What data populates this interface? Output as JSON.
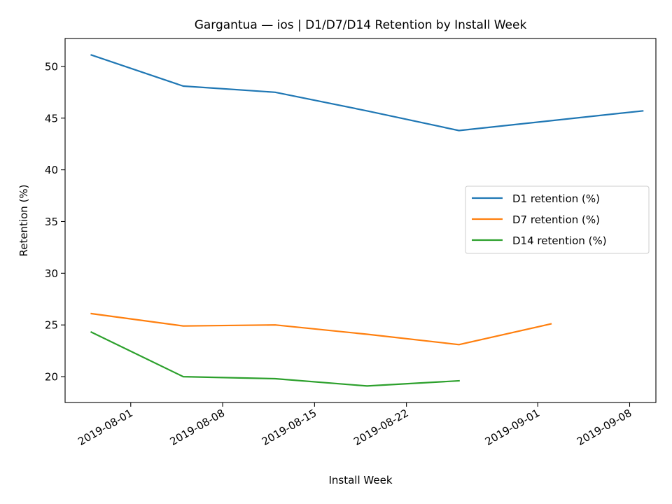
{
  "chart_data": {
    "type": "line",
    "title": "Gargantua — ios | D1/D7/D14 Retention by Install Week",
    "xlabel": "Install Week",
    "ylabel": "Retention (%)",
    "x_ticks": [
      "2019-08-01",
      "2019-08-08",
      "2019-08-15",
      "2019-08-22",
      "2019-09-01",
      "2019-09-08"
    ],
    "y_ticks": [
      20,
      25,
      30,
      35,
      40,
      45,
      50
    ],
    "xlim": [
      "2019-07-27",
      "2019-09-10"
    ],
    "ylim": [
      17.5,
      52.7
    ],
    "grid": false,
    "legend_position": "center-right",
    "series": [
      {
        "name": "D1 retention (%)",
        "color": "#1f77b4",
        "points": [
          {
            "x": "2019-07-29",
            "y": 51.1
          },
          {
            "x": "2019-08-05",
            "y": 48.1
          },
          {
            "x": "2019-08-12",
            "y": 47.5
          },
          {
            "x": "2019-08-19",
            "y": 45.7
          },
          {
            "x": "2019-08-26",
            "y": 43.8
          },
          {
            "x": "2019-09-09",
            "y": 45.7
          }
        ]
      },
      {
        "name": "D7 retention (%)",
        "color": "#ff7f0e",
        "points": [
          {
            "x": "2019-07-29",
            "y": 26.1
          },
          {
            "x": "2019-08-05",
            "y": 24.9
          },
          {
            "x": "2019-08-12",
            "y": 25.0
          },
          {
            "x": "2019-08-19",
            "y": 24.1
          },
          {
            "x": "2019-08-26",
            "y": 23.1
          },
          {
            "x": "2019-09-02",
            "y": 25.1
          }
        ]
      },
      {
        "name": "D14 retention (%)",
        "color": "#2ca02c",
        "points": [
          {
            "x": "2019-07-29",
            "y": 24.3
          },
          {
            "x": "2019-08-05",
            "y": 20.0
          },
          {
            "x": "2019-08-12",
            "y": 19.8
          },
          {
            "x": "2019-08-19",
            "y": 19.1
          },
          {
            "x": "2019-08-26",
            "y": 19.6
          }
        ]
      }
    ]
  }
}
